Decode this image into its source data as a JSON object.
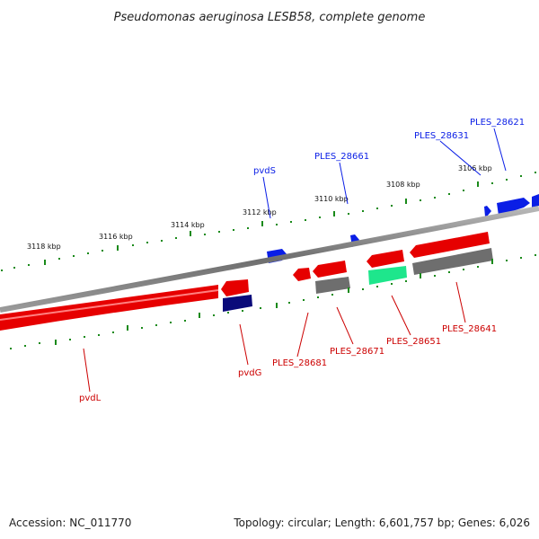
{
  "title": "Pseudomonas aeruginosa LESB58, complete genome",
  "footer": {
    "accession": "Accession: NC_011770",
    "summary": "Topology: circular; Length: 6,601,757 bp; Genes: 6,026"
  },
  "colors": {
    "forward_gene": "#0a1ee6",
    "reverse_gene": "#e60000",
    "backbone": "#7a7a7a",
    "dark_gene": "#0a0a7a",
    "grey_feature": "#6e6e6e",
    "green_feature": "#1ee68c",
    "tick": "#1a8a1a"
  },
  "scale_labels": [
    "3106 kbp",
    "3108 kbp",
    "3110 kbp",
    "3112 kbp",
    "3114 kbp",
    "3116 kbp",
    "3118 kbp"
  ],
  "forward_labels": [
    "PLES_28621",
    "PLES_28631",
    "PLES_28661",
    "pvdS"
  ],
  "reverse_labels": [
    "PLES_28641",
    "PLES_28651",
    "PLES_28671",
    "PLES_28681",
    "pvdG",
    "pvdL"
  ]
}
